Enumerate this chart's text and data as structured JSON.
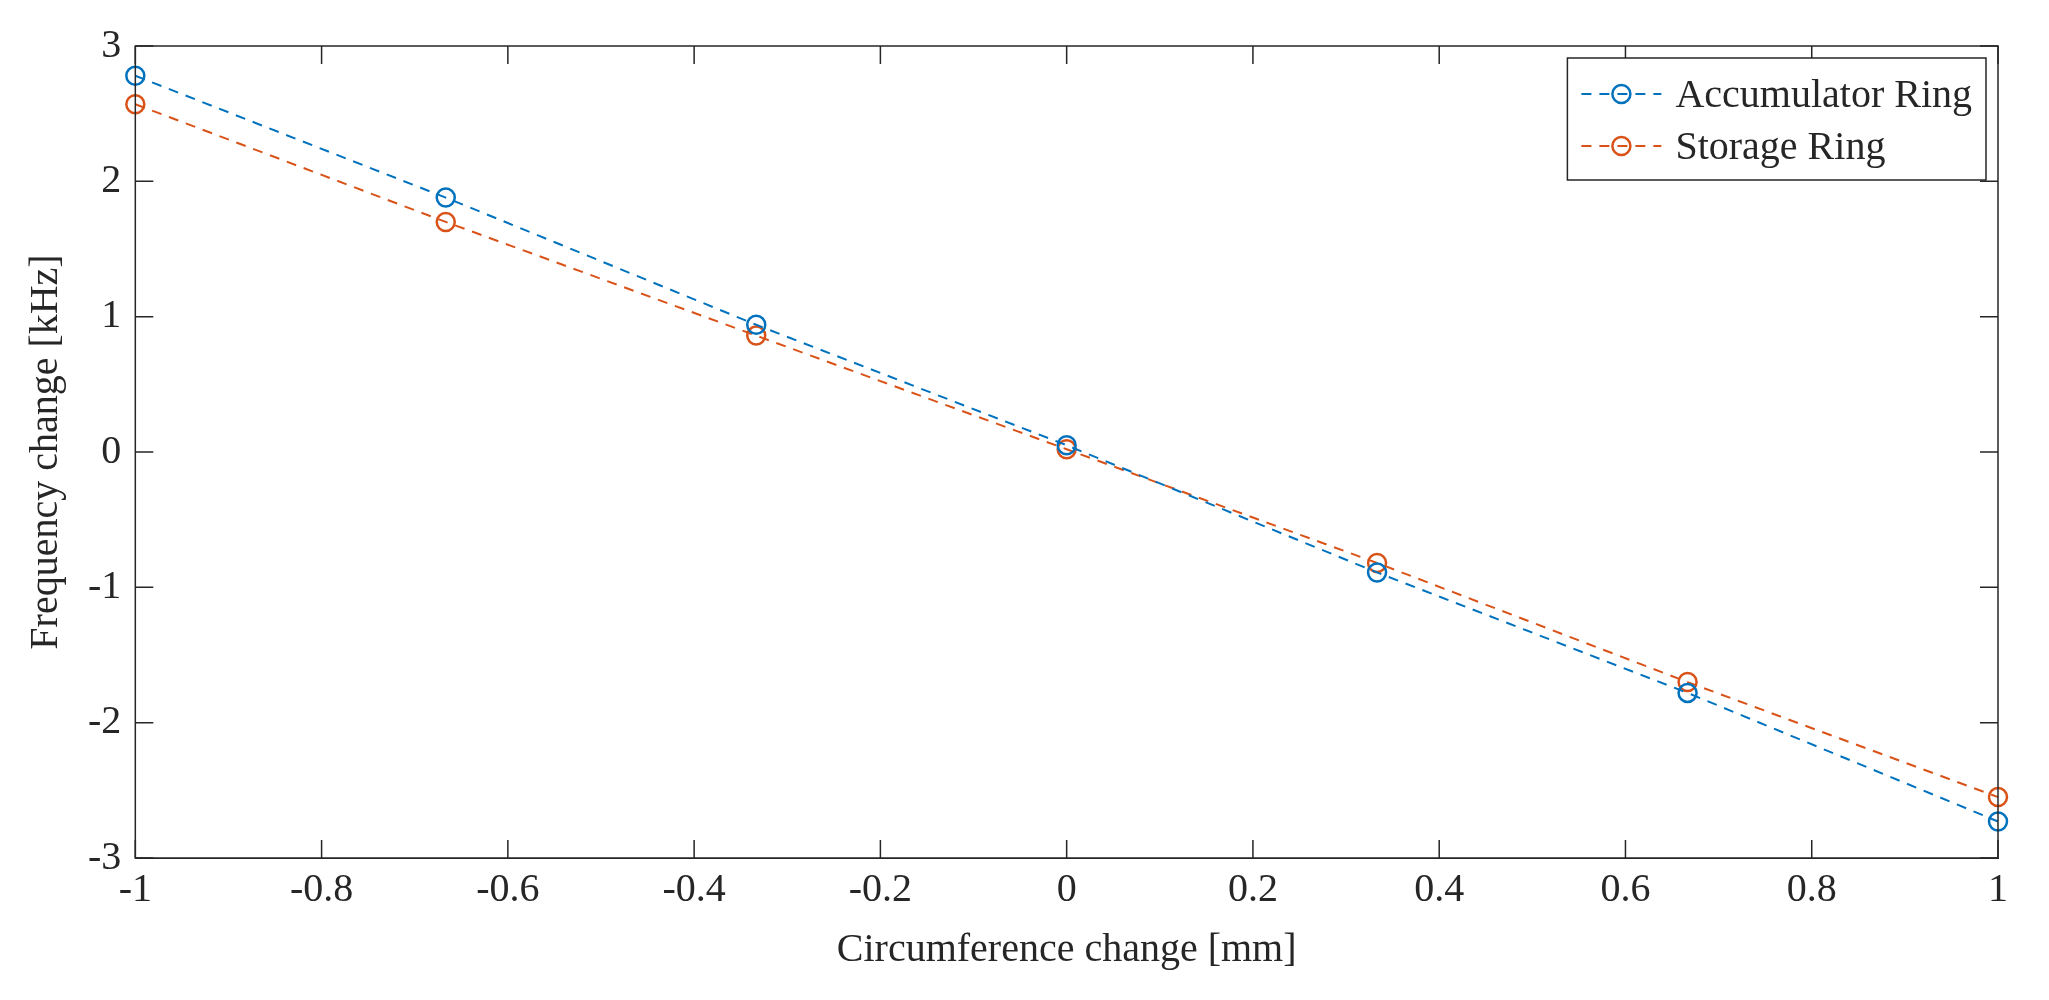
{
  "chart_data": {
    "type": "line",
    "xlabel": "Circumference change [mm]",
    "ylabel": "Frequency change [kHz]",
    "x": [
      -1,
      -0.6667,
      -0.3333,
      0,
      0.3333,
      0.6667,
      1
    ],
    "series": [
      {
        "name": "Accumulator Ring",
        "color": "#0072bd",
        "values": [
          2.78,
          1.88,
          0.94,
          0.05,
          -0.89,
          -1.78,
          -2.73
        ]
      },
      {
        "name": "Storage Ring",
        "color": "#d95319",
        "values": [
          2.57,
          1.7,
          0.86,
          0.02,
          -0.82,
          -1.7,
          -2.55
        ]
      }
    ],
    "xlim": [
      -1,
      1
    ],
    "xticks": [
      -1,
      -0.8,
      -0.6,
      -0.4,
      -0.2,
      0,
      0.2,
      0.4,
      0.6,
      0.8,
      1
    ],
    "ylim": [
      -3,
      3
    ],
    "yticks": [
      -3,
      -2,
      -1,
      0,
      1,
      2,
      3
    ],
    "grid": false,
    "legend": "top right",
    "marker": "circle",
    "line_style": "dashed"
  }
}
